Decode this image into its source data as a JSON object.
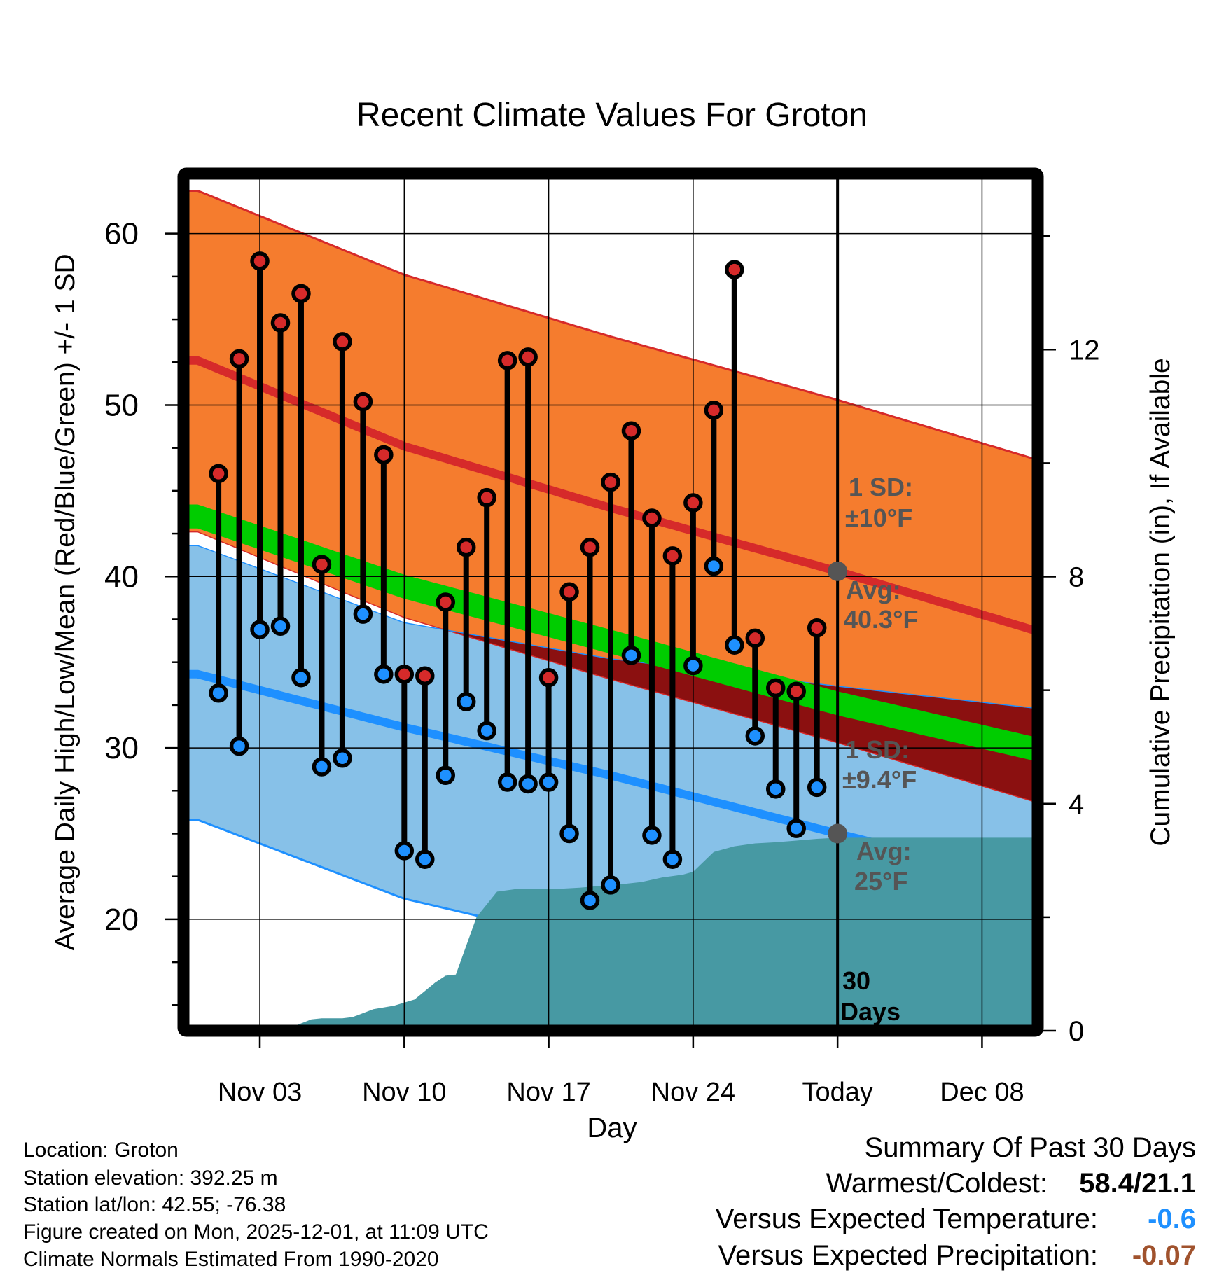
{
  "colors": {
    "warm_band": "#f57c2e",
    "cold_band": "#87c1e8",
    "overlap_band": "#8b1010",
    "high_line": "#d62a2a",
    "low_line": "#1e90ff",
    "mean_line": "#00cc00",
    "precip": "#4799a3",
    "high_dot": "#d62a2a",
    "low_dot": "#1e90ff",
    "annotation": "#555555",
    "temp_blue": "#1e90ff",
    "precip_brown": "#a0522d"
  },
  "chart_data": {
    "type": "line",
    "title": "Recent Climate Values For Groton",
    "xlabel": "Day",
    "ylabel": "Average Daily High/Low/Mean (Red/Blue/Green) +/- 1 SD",
    "y2label": "Cumulative Precipitation (in), If Available",
    "ylim": [
      13.5,
      63.5
    ],
    "y2lim": [
      0,
      15.1
    ],
    "xlim": [
      -0.7,
      40.7
    ],
    "grid": true,
    "x_ticks": [
      {
        "day": 3,
        "label": "Nov 03"
      },
      {
        "day": 10,
        "label": "Nov 10"
      },
      {
        "day": 17,
        "label": "Nov 17"
      },
      {
        "day": 24,
        "label": "Nov 24"
      },
      {
        "day": 31,
        "label": "Today"
      },
      {
        "day": 38,
        "label": "Dec 08"
      }
    ],
    "y_ticks": [
      20,
      30,
      40,
      50,
      60
    ],
    "y2_ticks": [
      0,
      4,
      8,
      12
    ],
    "today_day": 31,
    "normals_days": [
      0,
      10,
      20,
      31,
      40.7
    ],
    "normal_high": [
      52.6,
      47.6,
      44.0,
      40.3,
      36.8
    ],
    "high_upper": [
      62.5,
      57.6,
      54.0,
      50.3,
      46.8
    ],
    "high_lower": [
      42.6,
      37.6,
      34.0,
      30.3,
      26.8
    ],
    "normal_low": [
      34.3,
      31.2,
      28.4,
      25.0,
      22.1
    ],
    "low_upper": [
      41.8,
      37.3,
      35.2,
      33.6,
      32.3
    ],
    "low_lower": [
      25.8,
      21.2,
      18.4,
      15.6,
      12.7
    ],
    "normal_mean": [
      43.5,
      39.4,
      36.2,
      32.6,
      29.9
    ],
    "mean_band_width": 0.7,
    "observations": [
      {
        "day": 1,
        "high": 46.0,
        "low": 33.2
      },
      {
        "day": 2,
        "high": 52.7,
        "low": 30.1
      },
      {
        "day": 3,
        "high": 58.4,
        "low": 36.9
      },
      {
        "day": 4,
        "high": 54.8,
        "low": 37.1
      },
      {
        "day": 5,
        "high": 56.5,
        "low": 34.1
      },
      {
        "day": 6,
        "high": 40.7,
        "low": 28.9
      },
      {
        "day": 7,
        "high": 53.7,
        "low": 29.4
      },
      {
        "day": 8,
        "high": 50.2,
        "low": 37.8
      },
      {
        "day": 9,
        "high": 47.1,
        "low": 34.3
      },
      {
        "day": 10,
        "high": 34.3,
        "low": 24.0
      },
      {
        "day": 11,
        "high": 34.2,
        "low": 23.5
      },
      {
        "day": 12,
        "high": 38.5,
        "low": 28.4
      },
      {
        "day": 13,
        "high": 41.7,
        "low": 32.7
      },
      {
        "day": 14,
        "high": 44.6,
        "low": 31.0
      },
      {
        "day": 15,
        "high": 52.6,
        "low": 28.0
      },
      {
        "day": 16,
        "high": 52.8,
        "low": 27.9
      },
      {
        "day": 17,
        "high": 34.1,
        "low": 28.0
      },
      {
        "day": 18,
        "high": 39.1,
        "low": 25.0
      },
      {
        "day": 19,
        "high": 41.7,
        "low": 21.1
      },
      {
        "day": 20,
        "high": 45.5,
        "low": 22.0
      },
      {
        "day": 21,
        "high": 48.5,
        "low": 35.4
      },
      {
        "day": 22,
        "high": 43.4,
        "low": 24.9
      },
      {
        "day": 23,
        "high": 41.2,
        "low": 23.5
      },
      {
        "day": 24,
        "high": 44.3,
        "low": 34.8
      },
      {
        "day": 25,
        "high": 49.7,
        "low": 40.6
      },
      {
        "day": 26,
        "high": 57.9,
        "low": 36.0
      },
      {
        "day": 27,
        "high": 36.4,
        "low": 30.7
      },
      {
        "day": 28,
        "high": 33.5,
        "low": 27.6
      },
      {
        "day": 29,
        "high": 33.3,
        "low": 25.3
      },
      {
        "day": 30,
        "high": 37.0,
        "low": 27.7
      }
    ],
    "precip_days": [
      4.1,
      5.5,
      6.0,
      7.0,
      7.5,
      8.5,
      9.5,
      10.5,
      11.5,
      12.0,
      12.5,
      13.5,
      14.5,
      15.5,
      16.5,
      17.5,
      18.5,
      19.5,
      20.5,
      21.5,
      22.5,
      23.5,
      24.0,
      25.0,
      26.0,
      27.0,
      28.0,
      29.0,
      30.0,
      31.0,
      40.7
    ],
    "precip_cum": [
      0.0,
      0.2,
      0.22,
      0.22,
      0.24,
      0.38,
      0.44,
      0.55,
      0.85,
      0.97,
      0.99,
      2.0,
      2.45,
      2.5,
      2.5,
      2.5,
      2.52,
      2.55,
      2.58,
      2.62,
      2.7,
      2.75,
      2.8,
      3.15,
      3.25,
      3.3,
      3.32,
      3.35,
      3.38,
      3.4,
      3.4
    ],
    "annotations": {
      "high_sd_l1": "1 SD:",
      "high_sd_l2": "±10°F",
      "high_avg_l1": "Avg:",
      "high_avg_l2": "40.3°F",
      "low_sd_l1": "1 SD:",
      "low_sd_l2": "±9.4°F",
      "low_avg_l1": "Avg:",
      "low_avg_l2": "25°F",
      "days_l1": "30",
      "days_l2": "Days"
    }
  },
  "meta": {
    "location": "Location: Groton",
    "elevation": "Station elevation: 392.25 m",
    "latlon": "Station lat/lon: 42.55; -76.38",
    "created": "Figure created on Mon, 2025-12-01, at 11:09 UTC",
    "normals": "Climate Normals Estimated From 1990-2020"
  },
  "summary": {
    "title": "Summary Of Past 30 Days",
    "warm_cold_label": "Warmest/Coldest:",
    "warm_cold_value": "58.4/21.1",
    "temp_label": "Versus Expected Temperature:",
    "temp_value": "-0.6",
    "precip_label": "Versus Expected Precipitation:",
    "precip_value": "-0.07"
  }
}
